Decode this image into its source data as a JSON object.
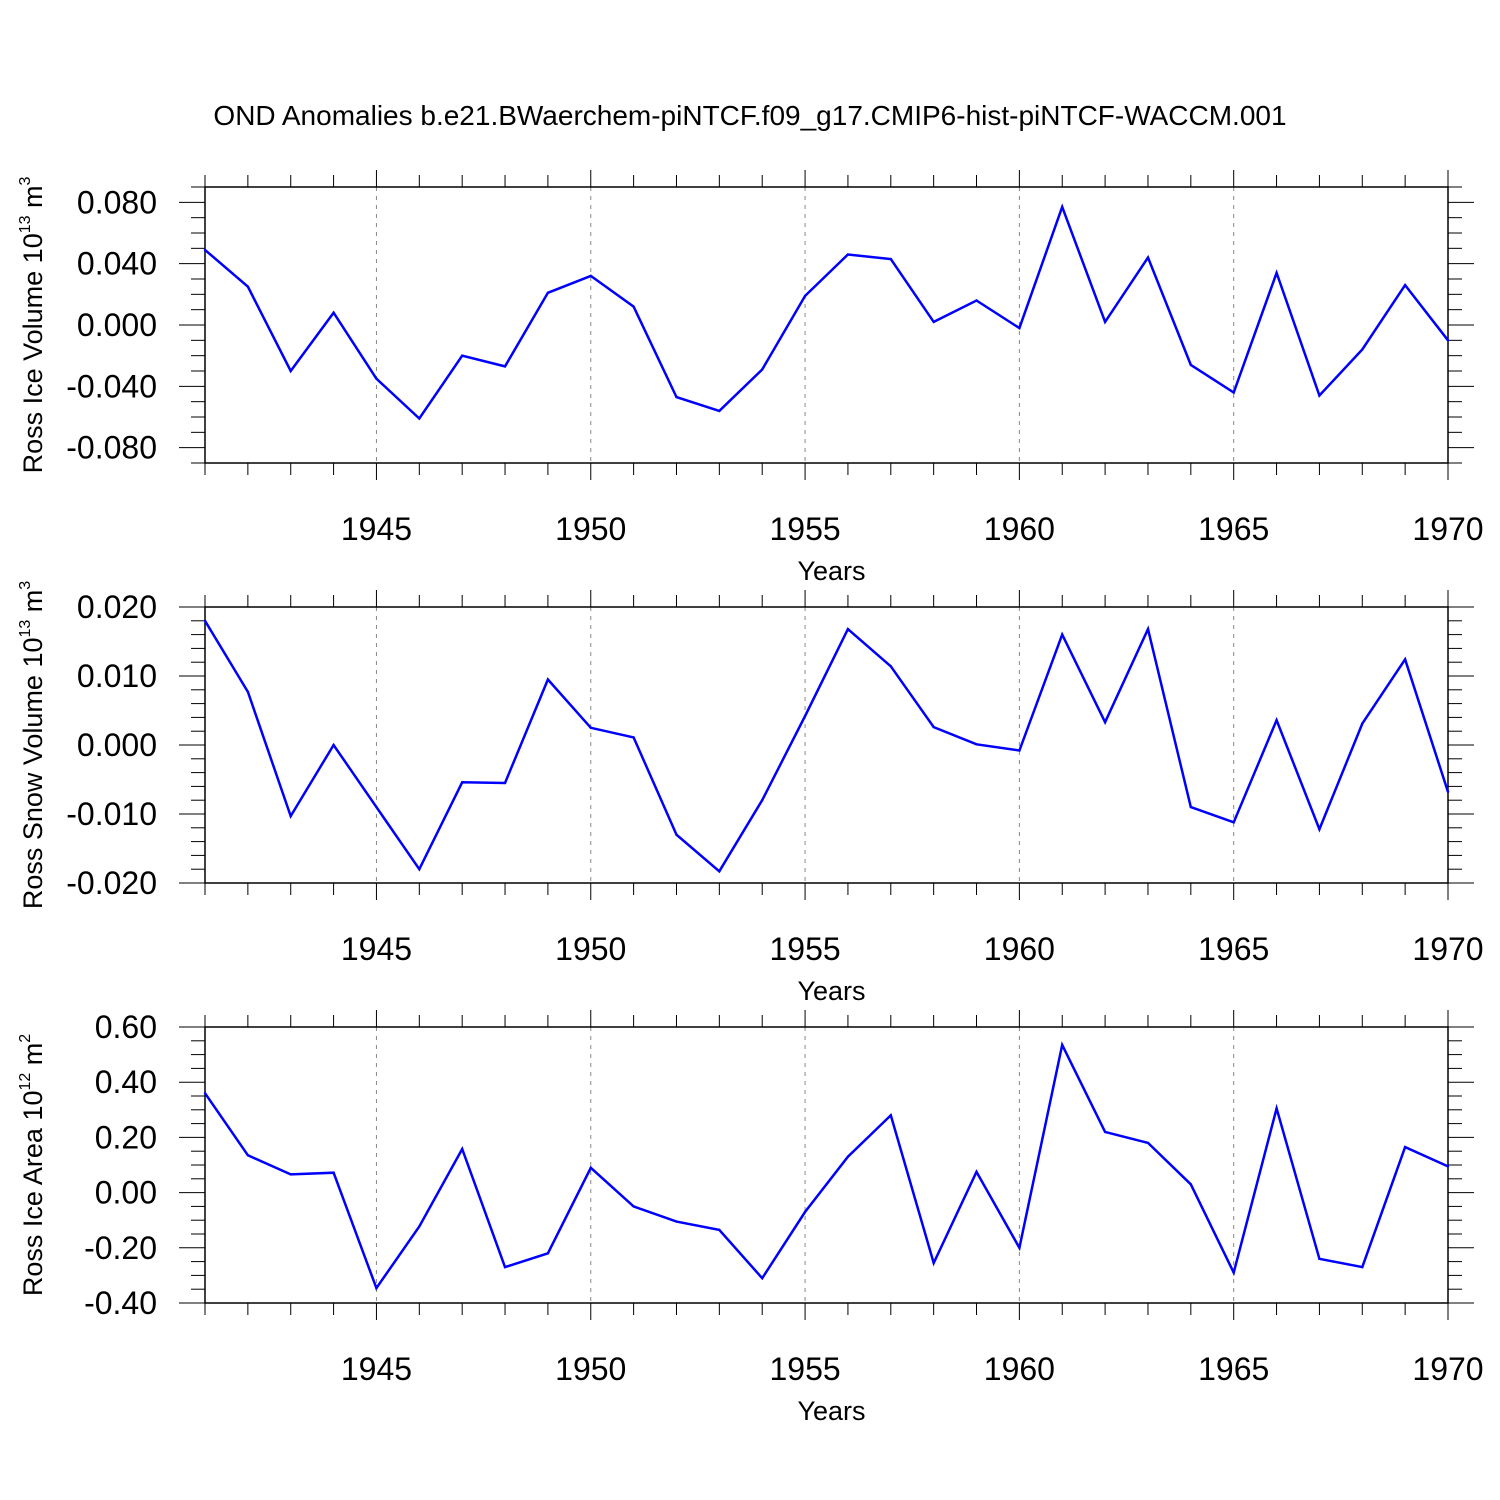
{
  "figure": {
    "title": "OND Anomalies b.e21.BWaerchem-piNTCF.f09_g17.CMIP6-hist-piNTCF-WACCM.001",
    "line_color": "#0000ff"
  },
  "chart_data": [
    {
      "type": "line",
      "ylabel": {
        "main": "Ross Ice Volume 10",
        "exp": "13",
        "unit": " m",
        "unit_exp": "3"
      },
      "xlabel": "Years",
      "xlim": [
        1941,
        1970
      ],
      "ylim": [
        -0.09,
        0.09
      ],
      "xticks": [
        "1945",
        "1950",
        "1955",
        "1960",
        "1965",
        "1970"
      ],
      "yticks": [
        {
          "value": 0.08,
          "label": "0.080"
        },
        {
          "value": 0.04,
          "label": "0.040"
        },
        {
          "value": 0.0,
          "label": "0.000"
        },
        {
          "value": -0.04,
          "label": "-0.040"
        },
        {
          "value": -0.08,
          "label": "-0.080"
        }
      ],
      "yminor": [
        0.09,
        0.07,
        0.06,
        0.05,
        0.03,
        0.02,
        0.01,
        -0.01,
        -0.02,
        -0.03,
        -0.05,
        -0.06,
        -0.07,
        -0.09
      ],
      "x": [
        1941,
        1942,
        1943,
        1944,
        1945,
        1946,
        1947,
        1948,
        1949,
        1950,
        1951,
        1952,
        1953,
        1954,
        1955,
        1956,
        1957,
        1958,
        1959,
        1960,
        1961,
        1962,
        1963,
        1964,
        1965,
        1966,
        1967,
        1968,
        1969,
        1970
      ],
      "y": [
        0.049,
        0.025,
        -0.03,
        0.008,
        -0.035,
        -0.061,
        -0.02,
        -0.027,
        0.021,
        0.032,
        0.012,
        -0.047,
        -0.056,
        -0.029,
        0.019,
        0.046,
        0.043,
        0.002,
        0.016,
        -0.002,
        0.077,
        0.002,
        0.044,
        -0.026,
        -0.044,
        0.034,
        -0.046,
        -0.016,
        0.026,
        -0.01
      ]
    },
    {
      "type": "line",
      "ylabel": {
        "main": "Ross Snow Volume 10",
        "exp": "13",
        "unit": " m",
        "unit_exp": "3"
      },
      "xlabel": "Years",
      "xlim": [
        1941,
        1970
      ],
      "ylim": [
        -0.02,
        0.02
      ],
      "xticks": [
        "1945",
        "1950",
        "1955",
        "1960",
        "1965",
        "1970"
      ],
      "yticks": [
        {
          "value": 0.02,
          "label": "0.020"
        },
        {
          "value": 0.01,
          "label": "0.010"
        },
        {
          "value": 0.0,
          "label": "0.000"
        },
        {
          "value": -0.01,
          "label": "-0.010"
        },
        {
          "value": -0.02,
          "label": "-0.020"
        }
      ],
      "yminor": [
        0.018,
        0.016,
        0.014,
        0.012,
        0.008,
        0.006,
        0.004,
        0.002,
        -0.002,
        -0.004,
        -0.006,
        -0.008,
        -0.012,
        -0.014,
        -0.016,
        -0.018
      ],
      "x": [
        1941,
        1942,
        1943,
        1944,
        1945,
        1946,
        1947,
        1948,
        1949,
        1950,
        1951,
        1952,
        1953,
        1954,
        1955,
        1956,
        1957,
        1958,
        1959,
        1960,
        1961,
        1962,
        1963,
        1964,
        1965,
        1966,
        1967,
        1968,
        1969,
        1970
      ],
      "y": [
        0.018,
        0.0077,
        -0.0103,
        0.0,
        -0.009,
        -0.018,
        -0.0054,
        -0.0055,
        0.0095,
        0.0025,
        0.0011,
        -0.013,
        -0.0183,
        -0.008,
        0.0042,
        0.0168,
        0.0114,
        0.0026,
        0.0001,
        -0.0008,
        0.016,
        0.0033,
        0.0168,
        -0.009,
        -0.0112,
        0.0036,
        -0.0122,
        0.0031,
        0.0124,
        -0.0068
      ]
    },
    {
      "type": "line",
      "ylabel": {
        "main": "Ross Ice Area 10",
        "exp": "12",
        "unit": " m",
        "unit_exp": "2"
      },
      "xlabel": "Years",
      "xlim": [
        1941,
        1970
      ],
      "ylim": [
        -0.4,
        0.6
      ],
      "xticks": [
        "1945",
        "1950",
        "1955",
        "1960",
        "1965",
        "1970"
      ],
      "yticks": [
        {
          "value": 0.6,
          "label": "0.60"
        },
        {
          "value": 0.4,
          "label": "0.40"
        },
        {
          "value": 0.2,
          "label": "0.20"
        },
        {
          "value": 0.0,
          "label": "0.00"
        },
        {
          "value": -0.2,
          "label": "-0.20"
        },
        {
          "value": -0.4,
          "label": "-0.40"
        }
      ],
      "yminor": [
        0.55,
        0.5,
        0.45,
        0.35,
        0.3,
        0.25,
        0.15,
        0.1,
        0.05,
        -0.05,
        -0.1,
        -0.15,
        -0.25,
        -0.3,
        -0.35
      ],
      "x": [
        1941,
        1942,
        1943,
        1944,
        1945,
        1946,
        1947,
        1948,
        1949,
        1950,
        1951,
        1952,
        1953,
        1954,
        1955,
        1956,
        1957,
        1958,
        1959,
        1960,
        1961,
        1962,
        1963,
        1964,
        1965,
        1966,
        1967,
        1968,
        1969,
        1970
      ],
      "y": [
        0.36,
        0.135,
        0.066,
        0.072,
        -0.346,
        -0.123,
        0.158,
        -0.27,
        -0.22,
        0.09,
        -0.05,
        -0.105,
        -0.135,
        -0.31,
        -0.07,
        0.13,
        0.28,
        -0.255,
        0.075,
        -0.2,
        0.535,
        0.22,
        0.18,
        0.03,
        -0.29,
        0.305,
        -0.24,
        -0.27,
        0.165,
        0.095
      ]
    }
  ]
}
